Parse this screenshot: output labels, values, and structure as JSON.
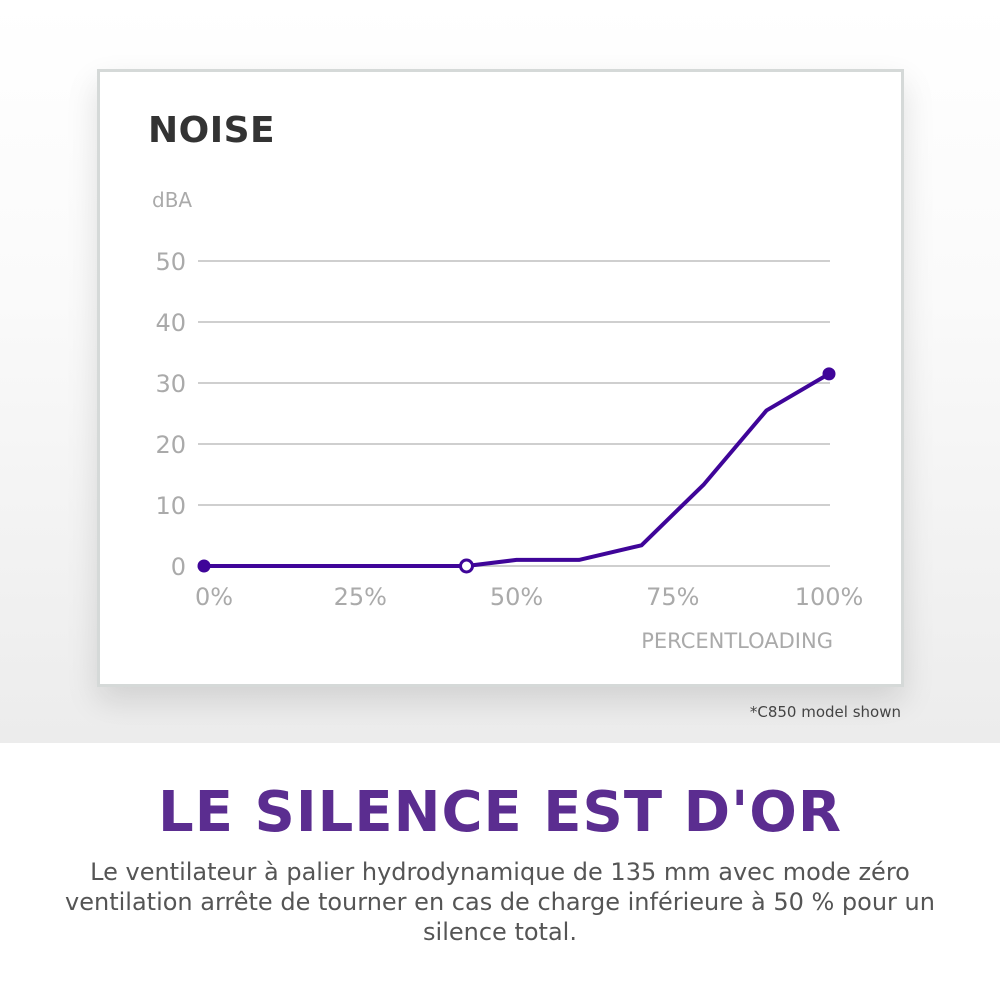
{
  "chart_data": {
    "type": "line",
    "title": "NOISE",
    "ylabel": "dBA",
    "xlabel": "PERCENTLOADING",
    "ylim": [
      0,
      50
    ],
    "xlim": [
      0,
      100
    ],
    "yticks": [
      "0",
      "10",
      "20",
      "30",
      "40",
      "50"
    ],
    "xticks": [
      "0%",
      "25%",
      "50%",
      "75%",
      "100%"
    ],
    "grid": true,
    "line_color": "#3f0599",
    "series": [
      {
        "x": [
          0,
          42,
          50,
          60,
          70,
          80,
          90,
          100
        ],
        "y": [
          0,
          0,
          1,
          1,
          3.4,
          13.4,
          25.5,
          31.5
        ]
      }
    ],
    "markers": [
      {
        "x": 0,
        "y": 0,
        "style": "filled"
      },
      {
        "x": 42,
        "y": 0,
        "style": "open"
      },
      {
        "x": 100,
        "y": 31.5,
        "style": "filled"
      }
    ]
  },
  "footnote": "*C850 model shown",
  "headline": "LE SILENCE EST D'OR",
  "description": "Le ventilateur à palier hydrodynamique de 135 mm avec mode zéro ventilation arrête de tourner en cas de charge inférieure à 50 % pour un silence total."
}
